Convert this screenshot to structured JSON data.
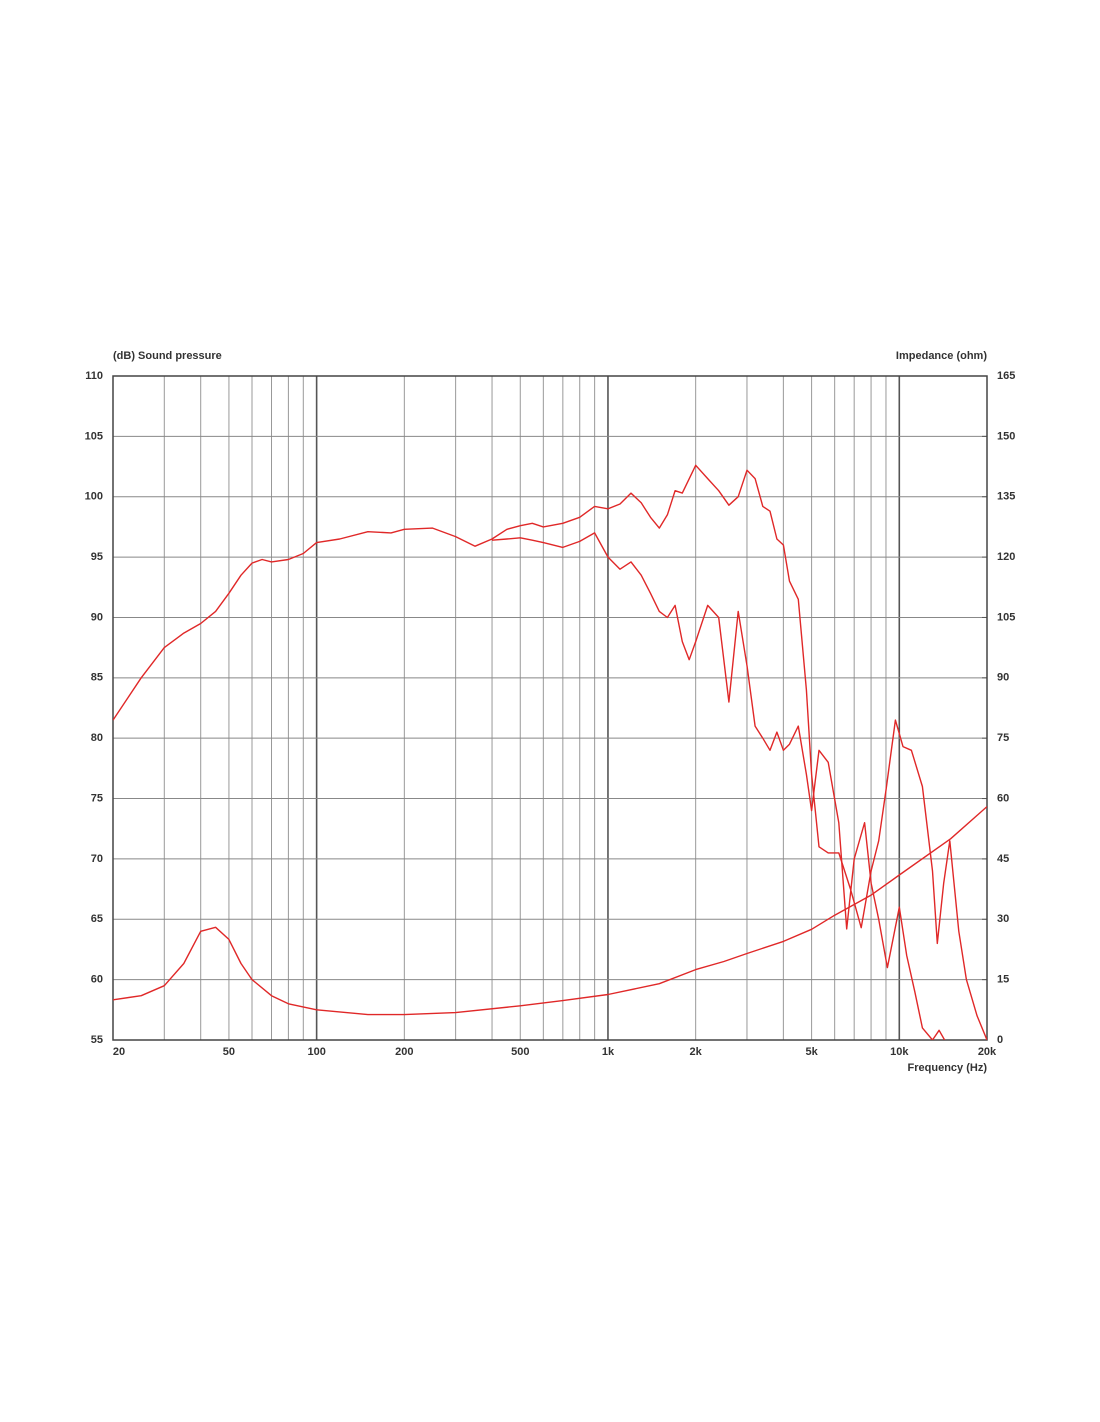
{
  "chart_data": {
    "type": "line",
    "ylabel": "(dB)  Sound pressure",
    "y2label": "Impedance  (ohm)",
    "xlabel": "Frequency  (Hz)",
    "xscale": "log",
    "xlim": [
      20,
      20000
    ],
    "xticks": [
      20,
      50,
      100,
      200,
      500,
      {
        "value": 1000,
        "label": "1k"
      },
      {
        "value": 2000,
        "label": "2k"
      },
      {
        "value": 5000,
        "label": "5k"
      },
      {
        "value": 10000,
        "label": "10k"
      },
      {
        "value": 20000,
        "label": "20k"
      }
    ],
    "xgrid": [
      30,
      40,
      60,
      70,
      80,
      90,
      300,
      400,
      600,
      700,
      800,
      900,
      3000,
      4000,
      6000,
      7000,
      8000,
      9000
    ],
    "ylim": [
      55,
      110
    ],
    "yticks": [
      55,
      60,
      65,
      70,
      75,
      80,
      85,
      90,
      95,
      100,
      105,
      110
    ],
    "y2lim": [
      0,
      165
    ],
    "y2ticks": [
      0,
      15,
      30,
      45,
      60,
      75,
      90,
      105,
      120,
      135,
      150,
      165
    ],
    "grid": true,
    "series": [
      {
        "color": "#e02828",
        "x": [
          20,
          25,
          30,
          35,
          40,
          45,
          50,
          55,
          60,
          65,
          70,
          80,
          90,
          100,
          120,
          150,
          180,
          200,
          250,
          300,
          350,
          400,
          450,
          500,
          550,
          600,
          700,
          800,
          900,
          1000,
          1100,
          1200,
          1300,
          1400,
          1500,
          1600,
          1700,
          1800,
          2000,
          2200,
          2400,
          2600,
          2800,
          3000,
          3200,
          3400,
          3600,
          3800,
          4000,
          4200,
          4500,
          4800,
          5000,
          5300,
          5700,
          6200,
          6800,
          7400,
          8000,
          8500,
          9000,
          9700,
          10300,
          11000,
          12000,
          13000,
          13500,
          14200,
          14900,
          16000,
          17000,
          18500,
          20000
        ],
        "values": [
          81.5,
          85,
          87.5,
          88.7,
          89.5,
          90.5,
          92,
          93.5,
          94.5,
          94.8,
          94.6,
          94.8,
          95.3,
          96.2,
          96.5,
          97.1,
          97,
          97.3,
          97.4,
          96.7,
          95.9,
          96.5,
          97.3,
          97.6,
          97.8,
          97.5,
          97.8,
          98.3,
          99.2,
          99,
          99.4,
          100.3,
          99.5,
          98.3,
          97.4,
          98.5,
          100.5,
          100.3,
          102.6,
          101.5,
          100.5,
          99.3,
          100,
          102.2,
          101.5,
          99.2,
          98.8,
          96.5,
          96,
          93,
          91.5,
          84,
          77,
          71,
          70.5,
          70.5,
          67.5,
          64.3,
          69,
          71.5,
          75.7,
          81.5,
          79.3,
          79,
          76,
          69,
          63,
          68,
          71.5,
          64,
          60,
          57,
          55
        ]
      },
      {
        "color": "#e02828",
        "x": [
          400,
          450,
          500,
          550,
          600,
          700,
          800,
          900,
          1000,
          1100,
          1200,
          1300,
          1400,
          1500,
          1600,
          1700,
          1800,
          1900,
          2000,
          2200,
          2400,
          2600,
          2800,
          3000,
          3200,
          3400,
          3600,
          3800,
          4000,
          4200,
          4500,
          4800,
          5000,
          5300,
          5700,
          6200,
          6600,
          7000,
          7600,
          8000,
          8500,
          9100,
          10000,
          10600,
          11300,
          12000,
          13000,
          13700,
          14300
        ],
        "values": [
          96.4,
          96.5,
          96.6,
          96.4,
          96.2,
          95.8,
          96.3,
          97,
          95,
          94,
          94.6,
          93.5,
          92,
          90.5,
          90,
          91,
          88,
          86.5,
          88,
          91,
          90,
          83,
          90.5,
          86,
          81,
          80,
          79,
          80.5,
          79,
          79.5,
          81,
          77,
          74,
          79,
          78,
          73,
          64.2,
          70,
          73,
          68,
          65,
          61,
          66,
          62,
          59,
          56,
          55,
          55.8,
          55
        ]
      },
      {
        "color": "#e02828",
        "axis": "y2",
        "x": [
          20,
          25,
          30,
          35,
          40,
          45,
          50,
          55,
          60,
          70,
          80,
          100,
          150,
          200,
          300,
          500,
          700,
          1000,
          1500,
          2000,
          2500,
          3000,
          4000,
          5000,
          6000,
          8000,
          10000,
          15000,
          20000
        ],
        "values": [
          10,
          11,
          13.5,
          19,
          27,
          28,
          25,
          19,
          15,
          11,
          9,
          7.5,
          6.3,
          6.3,
          6.8,
          8.5,
          9.8,
          11.3,
          14,
          17.5,
          19.5,
          21.5,
          24.5,
          27.5,
          31,
          36,
          41,
          50,
          58
        ]
      }
    ]
  }
}
